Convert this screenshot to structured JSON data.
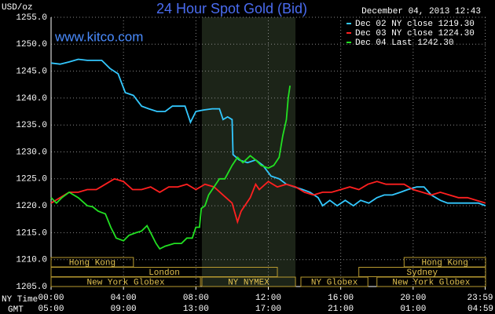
{
  "chart_data": {
    "type": "line",
    "title": "24 Hour Spot Gold (Bid)",
    "date": "December 04, 2013 12:43",
    "site": "www.kitco.com",
    "y_label": "USD/oz",
    "x_label": "NY Time",
    "x2_label": "GMT",
    "xlim": [
      0,
      24
    ],
    "ylim": [
      1205,
      1255
    ],
    "yticks": [
      {
        "value": 1205,
        "label": "1205.0"
      },
      {
        "value": 1210,
        "label": "1210.0"
      },
      {
        "value": 1215,
        "label": "1215.0"
      },
      {
        "value": 1220,
        "label": "1220.0"
      },
      {
        "value": 1225,
        "label": "1225.0"
      },
      {
        "value": 1230,
        "label": "1230.0"
      },
      {
        "value": 1235,
        "label": "1235.0"
      },
      {
        "value": 1240,
        "label": "1240.0"
      },
      {
        "value": 1245,
        "label": "1245.0"
      },
      {
        "value": 1250,
        "label": "1250.0"
      },
      {
        "value": 1255,
        "label": "1255.0"
      }
    ],
    "xticks": [
      {
        "value": 0,
        "label": "00:00"
      },
      {
        "value": 4,
        "label": "04:00"
      },
      {
        "value": 8,
        "label": "08:00"
      },
      {
        "value": 12,
        "label": "12:00"
      },
      {
        "value": 16,
        "label": "16:00"
      },
      {
        "value": 20,
        "label": "20:00"
      },
      {
        "value": 23.98,
        "label": "23:59"
      }
    ],
    "x2ticks": [
      {
        "value": 0,
        "label": "05:00"
      },
      {
        "value": 4,
        "label": "09:00"
      },
      {
        "value": 8,
        "label": "13:00"
      },
      {
        "value": 12,
        "label": "17:00"
      },
      {
        "value": 16,
        "label": "21:00"
      },
      {
        "value": 20,
        "label": "01:00"
      },
      {
        "value": 23.98,
        "label": "04:59"
      }
    ],
    "grid": true,
    "highlight": [
      8.33,
      13.5
    ],
    "sessions": [
      {
        "label": "Hong Kong",
        "start": 0,
        "end": 4.55,
        "row": 0
      },
      {
        "label": "Hong Kong",
        "start": 19.5,
        "end": 24,
        "row": 0
      },
      {
        "label": "London",
        "start": 0,
        "end": 12.5,
        "row": 1
      },
      {
        "label": "Sydney",
        "start": 17,
        "end": 24,
        "row": 1
      },
      {
        "label": "New York Globex",
        "start": 0,
        "end": 8.25,
        "row": 2
      },
      {
        "label": "NY NYMEX",
        "start": 8.33,
        "end": 13.5,
        "row": 2
      },
      {
        "label": "NY Globex",
        "start": 13.8,
        "end": 17.5,
        "row": 2
      },
      {
        "label": "New York Globex",
        "start": 18,
        "end": 24,
        "row": 2
      }
    ],
    "series": [
      {
        "name": "Dec 02 NY close 1219.30",
        "color": "#33c8ff",
        "x": [
          0,
          0.5,
          1,
          1.5,
          2,
          2.8,
          3.25,
          3.7,
          4.1,
          4.55,
          5,
          5.4,
          5.85,
          6.3,
          6.7,
          7.4,
          7.7,
          8,
          8.45,
          8.9,
          9.3,
          9.5,
          9.75,
          10,
          10.05,
          10.4,
          10.85,
          11.3,
          11.7,
          12.15,
          12.6,
          13,
          13.45,
          13.9,
          14.3,
          14.75,
          15,
          15.4,
          15.8,
          16.25,
          16.7,
          17.1,
          17.55,
          18,
          18.4,
          18.85,
          19.3,
          19.7,
          20.2,
          20.6,
          21,
          21.5,
          21.9,
          22.3,
          22.8,
          23.2,
          23.6,
          24
        ],
        "values": [
          1246.5,
          1246.3,
          1246.7,
          1247.2,
          1247.0,
          1247.0,
          1245.5,
          1244.5,
          1241,
          1240.5,
          1238.5,
          1238,
          1237.5,
          1237.5,
          1238.5,
          1238.5,
          1235.5,
          1237.5,
          1237.8,
          1238,
          1238,
          1236,
          1236.5,
          1236,
          1229.5,
          1228.5,
          1228,
          1228.5,
          1227.5,
          1225.5,
          1225,
          1224,
          1223.5,
          1223,
          1222.5,
          1221.5,
          1220,
          1221,
          1220,
          1221,
          1220,
          1221,
          1220.5,
          1221.5,
          1222,
          1222,
          1222.5,
          1223,
          1223.5,
          1223.5,
          1222,
          1221,
          1220.5,
          1220.5,
          1220.5,
          1220.5,
          1220.5,
          1220
        ]
      },
      {
        "name": "Dec 03 NY close 1224.30",
        "color": "#ff2020",
        "x": [
          0,
          0.5,
          1,
          1.5,
          2,
          2.5,
          3,
          3.5,
          4,
          4.5,
          5,
          5.5,
          6,
          6.5,
          7,
          7.5,
          8,
          8.5,
          9,
          9.5,
          10,
          10.3,
          10.5,
          11,
          11.3,
          11.5,
          12,
          12.5,
          13,
          13.5,
          14,
          14.5,
          15,
          15.5,
          16,
          16.5,
          17,
          17.5,
          18,
          18.5,
          19,
          19.5,
          20,
          20.5,
          21,
          21.5,
          22,
          22.5,
          23,
          23.5,
          24
        ],
        "values": [
          1220.5,
          1221.5,
          1222.5,
          1222.5,
          1223,
          1223,
          1224,
          1225,
          1224.5,
          1223,
          1223,
          1223.5,
          1222.5,
          1223.5,
          1223.5,
          1224,
          1223,
          1224,
          1223.5,
          1222,
          1220.5,
          1217,
          1219,
          1221.5,
          1224,
          1223,
          1224.5,
          1223.5,
          1224,
          1223.5,
          1222.5,
          1222,
          1222.5,
          1222.5,
          1223,
          1223.5,
          1223,
          1224,
          1224.5,
          1224,
          1224,
          1224,
          1223,
          1222.5,
          1222,
          1222.5,
          1222,
          1221.5,
          1221.5,
          1221,
          1220.5
        ]
      },
      {
        "name": "Dec 04 Last 1242.30",
        "color": "#22e022",
        "x": [
          0,
          0.3,
          0.6,
          1,
          1.5,
          2,
          2.3,
          2.6,
          3,
          3.3,
          3.6,
          4,
          4.3,
          4.7,
          5,
          5.3,
          5.5,
          5.8,
          6,
          6.3,
          6.8,
          7.2,
          7.5,
          7.8,
          8,
          8.2,
          8.3,
          8.5,
          8.7,
          9,
          9.3,
          9.6,
          10,
          10.3,
          10.6,
          11,
          11.3,
          11.6,
          12,
          12.3,
          12.6,
          12.8,
          13,
          13.1,
          13.2
        ],
        "values": [
          1221.5,
          1220.5,
          1221.5,
          1222.5,
          1221.5,
          1220,
          1219.8,
          1219,
          1218.5,
          1216,
          1214,
          1213.5,
          1214.5,
          1215,
          1215.3,
          1216.3,
          1215,
          1213,
          1212,
          1212.5,
          1213,
          1213,
          1214,
          1214,
          1216,
          1216,
          1219.5,
          1220,
          1222,
          1223.5,
          1225,
          1225,
          1227.5,
          1229,
          1228,
          1229.3,
          1228.5,
          1227.5,
          1227,
          1227.5,
          1229,
          1233,
          1236,
          1240,
          1242.3
        ]
      }
    ]
  }
}
